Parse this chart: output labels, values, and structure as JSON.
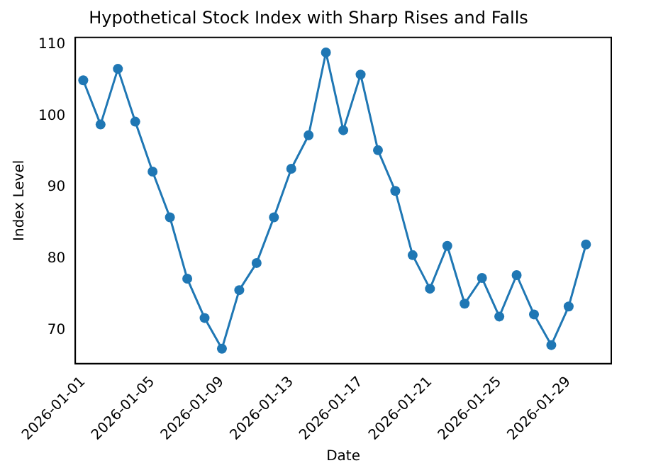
{
  "chart_data": {
    "type": "line",
    "title": "Hypothetical Stock Index with Sharp Rises and Falls",
    "xlabel": "Date",
    "ylabel": "Index Level",
    "x": [
      "2026-01-01",
      "2026-01-02",
      "2026-01-03",
      "2026-01-04",
      "2026-01-05",
      "2026-01-06",
      "2026-01-07",
      "2026-01-08",
      "2026-01-09",
      "2026-01-10",
      "2026-01-11",
      "2026-01-12",
      "2026-01-13",
      "2026-01-14",
      "2026-01-15",
      "2026-01-16",
      "2026-01-17",
      "2026-01-18",
      "2026-01-19",
      "2026-01-20",
      "2026-01-21",
      "2026-01-22",
      "2026-01-23",
      "2026-01-24",
      "2026-01-25",
      "2026-01-26",
      "2026-01-27",
      "2026-01-28",
      "2026-01-29",
      "2026-01-30"
    ],
    "series": [
      {
        "color": "#1f77b4",
        "values": [
          105.0,
          98.8,
          106.6,
          99.2,
          92.2,
          85.8,
          77.2,
          71.7,
          67.4,
          75.6,
          79.4,
          85.8,
          92.6,
          97.3,
          108.9,
          98.0,
          105.8,
          95.2,
          89.5,
          80.5,
          75.8,
          81.8,
          73.7,
          77.3,
          71.9,
          77.7,
          72.2,
          67.9,
          73.3,
          82.0
        ]
      }
    ],
    "xlim": [
      "2025-12-31T13:00",
      "2026-01-31T11:00"
    ],
    "xticks": [
      "2026-01-01",
      "2026-01-05",
      "2026-01-09",
      "2026-01-13",
      "2026-01-17",
      "2026-01-21",
      "2026-01-25",
      "2026-01-29"
    ],
    "ylim": [
      65.3,
      111.0
    ],
    "yticks": [
      70,
      80,
      90,
      100,
      110
    ],
    "grid": false,
    "legend": false,
    "marker": "circle",
    "line_style": "solid"
  }
}
